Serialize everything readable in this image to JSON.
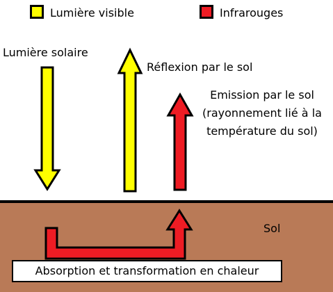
{
  "colors": {
    "visible": "#ffff00",
    "infrared": "#ee1c24",
    "soil": "#b97a57",
    "outline": "#000000"
  },
  "legend": {
    "visible_label": "Lumière visible",
    "infrared_label": "Infrarouges"
  },
  "labels": {
    "sunlight": "Lumière solaire",
    "reflection": "Réflexion par le sol",
    "emission": [
      "Emission par le sol",
      "(rayonnement lié à la",
      "température du sol)"
    ],
    "soil": "Sol",
    "absorption": "Absorption et transformation en chaleur"
  }
}
